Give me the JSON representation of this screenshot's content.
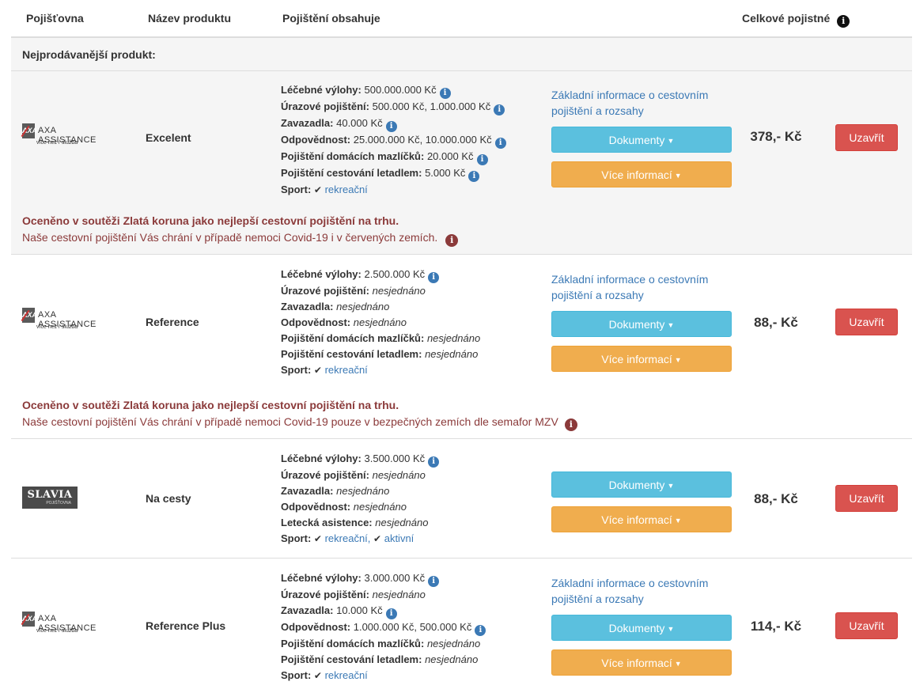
{
  "header": {
    "insurer": "Pojišťovna",
    "product": "Název produktu",
    "includes": "Pojištění obsahuje",
    "total": "Celkové pojistné"
  },
  "bestseller_label": "Nejprodávanější produkt:",
  "labels": {
    "documents": "Dokumenty",
    "more_info": "Více informací",
    "close": "Uzavřít",
    "basic_info": "Základní informace o cestovním pojištění a rozsahy"
  },
  "products": [
    {
      "insurer": "AXA ASSISTANCE",
      "logo_tagline": "více než / služba",
      "name": "Excelent",
      "price": "378,- Kč",
      "coverage": [
        {
          "label": "Léčebné výlohy:",
          "value": "500.000.000 Kč"
        },
        {
          "label": "Úrazové pojištění:",
          "value": "500.000 Kč, 1.000.000 Kč"
        },
        {
          "label": "Zavazadla:",
          "value": "40.000 Kč"
        },
        {
          "label": "Odpovědnost:",
          "value": "25.000.000 Kč, 10.000.000 Kč"
        },
        {
          "label": "Pojištění domácích mazlíčků:",
          "value": "20.000 Kč"
        },
        {
          "label": "Pojištění cestování letadlem:",
          "value": "5.000 Kč"
        },
        {
          "label": "Sport:",
          "value": "rekreační"
        }
      ],
      "award_title": "Oceněno v soutěži Zlatá koruna jako nejlepší cestovní pojištění na trhu.",
      "award_note": "Naše cestovní pojištění Vás chrání v případě nemoci Covid-19 i v červených zemích."
    },
    {
      "insurer": "AXA ASSISTANCE",
      "logo_tagline": "více než / služba",
      "name": "Reference",
      "price": "88,- Kč",
      "coverage": [
        {
          "label": "Léčebné výlohy:",
          "value": "2.500.000 Kč"
        },
        {
          "label": "Úrazové pojištění:",
          "value": "nesjednáno"
        },
        {
          "label": "Zavazadla:",
          "value": "nesjednáno"
        },
        {
          "label": "Odpovědnost:",
          "value": "nesjednáno"
        },
        {
          "label": "Pojištění domácích mazlíčků:",
          "value": "nesjednáno"
        },
        {
          "label": "Pojištění cestování letadlem:",
          "value": "nesjednáno"
        },
        {
          "label": "Sport:",
          "value": "rekreační"
        }
      ],
      "award_title": "Oceněno v soutěži Zlatá koruna jako nejlepší cestovní pojištění na trhu.",
      "award_note": "Naše cestovní pojištění Vás chrání v případě nemoci Covid-19 pouze v bezpečných zemích dle semafor MZV"
    },
    {
      "insurer": "SLAVIA",
      "logo_tagline": "POJIŠŤOVNA",
      "name": "Na cesty",
      "price": "88,- Kč",
      "coverage": [
        {
          "label": "Léčebné výlohy:",
          "value": "3.500.000 Kč"
        },
        {
          "label": "Úrazové pojištění:",
          "value": "nesjednáno"
        },
        {
          "label": "Zavazadla:",
          "value": "nesjednáno"
        },
        {
          "label": "Odpovědnost:",
          "value": "nesjednáno"
        },
        {
          "label": "Letecká asistence:",
          "value": "nesjednáno"
        },
        {
          "label": "Sport:",
          "value": "rekreační,",
          "value2": "aktivní"
        }
      ]
    },
    {
      "insurer": "AXA ASSISTANCE",
      "logo_tagline": "více než / služba",
      "name": "Reference Plus",
      "price": "114,- Kč",
      "coverage": [
        {
          "label": "Léčebné výlohy:",
          "value": "3.000.000 Kč"
        },
        {
          "label": "Úrazové pojištění:",
          "value": "nesjednáno"
        },
        {
          "label": "Zavazadla:",
          "value": "10.000 Kč"
        },
        {
          "label": "Odpovědnost:",
          "value": "1.000.000 Kč, 500.000 Kč"
        },
        {
          "label": "Pojištění domácích mazlíčků:",
          "value": "nesjednáno"
        },
        {
          "label": "Pojištění cestování letadlem:",
          "value": "nesjednáno"
        },
        {
          "label": "Sport:",
          "value": "rekreační"
        }
      ]
    }
  ],
  "colors": {
    "accent_blue": "#5bc0de",
    "accent_orange": "#f0ad4e",
    "accent_red": "#d9534f",
    "link": "#3b79b5",
    "award": "#8b3a3a"
  }
}
